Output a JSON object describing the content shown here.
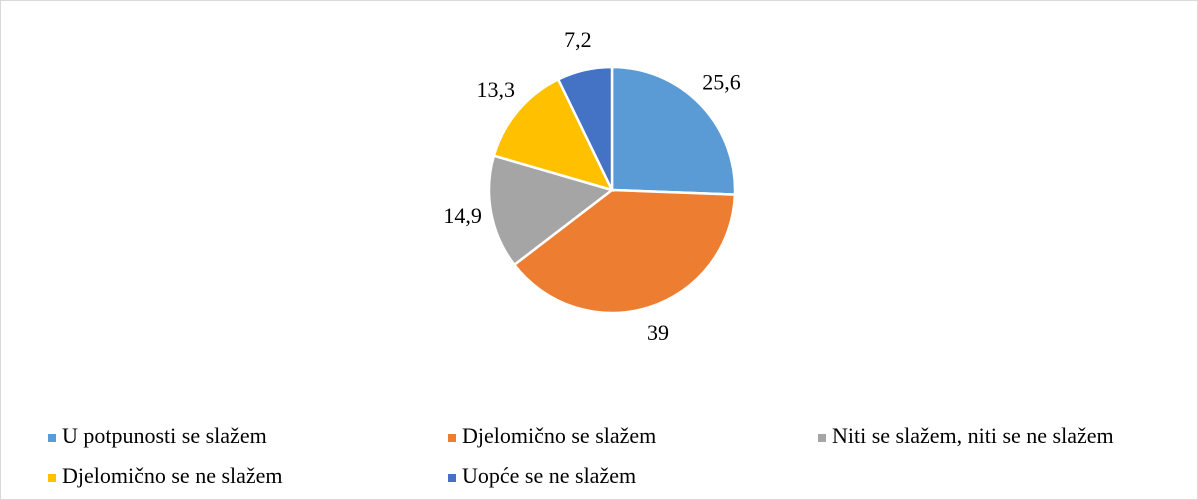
{
  "chart_data": {
    "type": "pie",
    "categories": [
      "U potpunosti se slažem",
      "Djelomično se slažem",
      "Niti se slažem, niti se ne slažem",
      "Djelomično se ne slažem",
      "Uopće se ne slažem"
    ],
    "values": [
      25.6,
      39,
      14.9,
      13.3,
      7.2
    ],
    "value_labels": [
      "25,6",
      "39",
      "14,9",
      "13,3",
      "7,2"
    ],
    "colors": [
      "#5b9bd5",
      "#ed7d31",
      "#a5a5a5",
      "#ffc000",
      "#4472c4"
    ],
    "legend": "bottom"
  }
}
